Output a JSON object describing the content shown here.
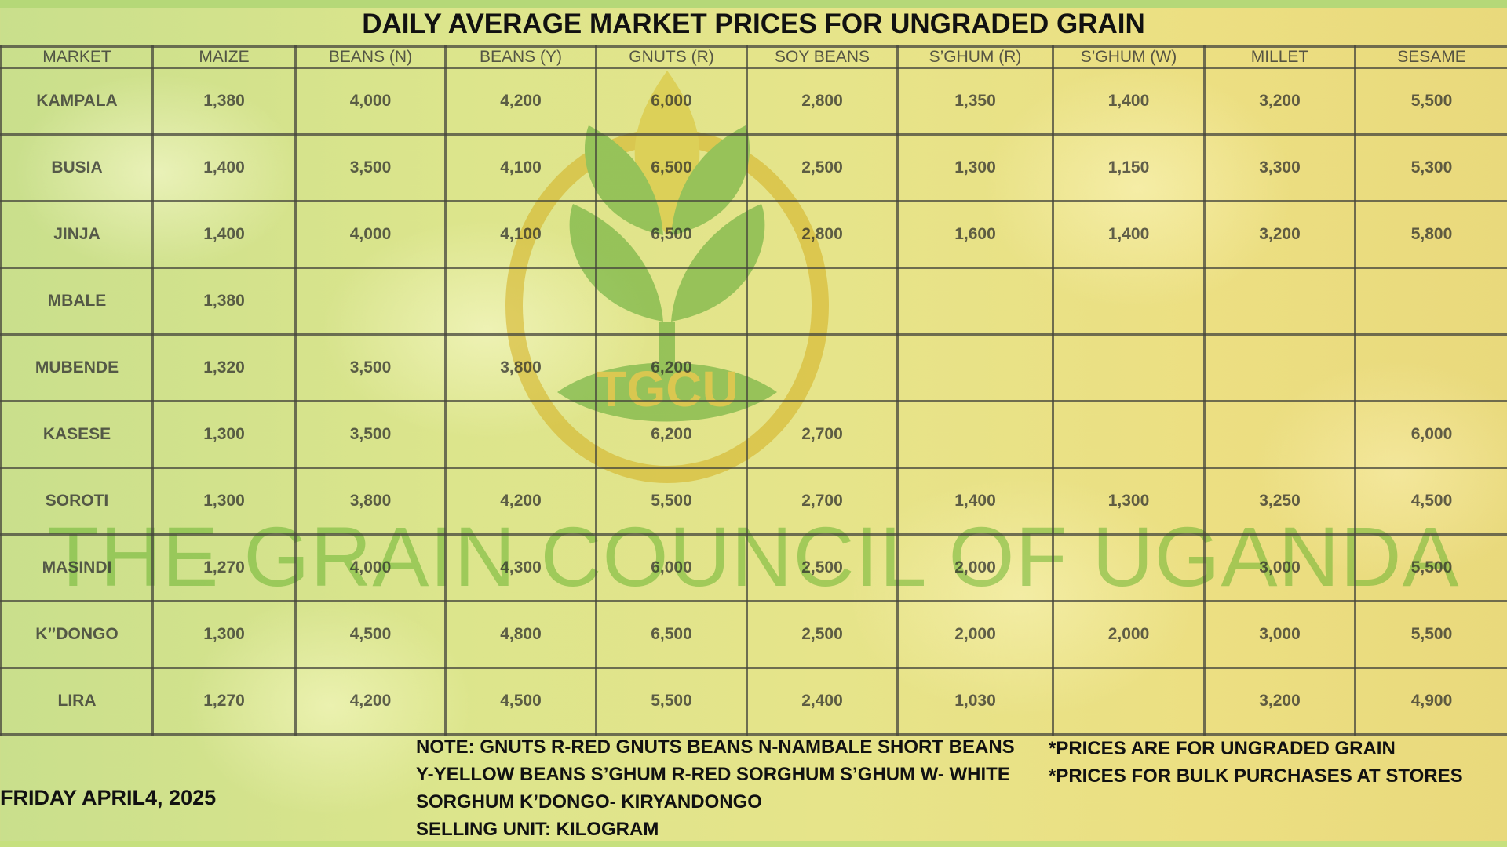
{
  "title": "DAILY AVERAGE MARKET PRICES FOR UNGRADED GRAIN",
  "logo": {
    "icon": "wheat-logo-icon",
    "text": "TGCU"
  },
  "watermark": "THE GRAIN COUNCIL OF UGANDA",
  "table": {
    "headers": [
      "MARKET",
      "MAIZE",
      "BEANS (N)",
      "BEANS (Y)",
      "GNUTS (R)",
      "SOY BEANS",
      "S’GHUM (R)",
      "S’GHUM (W)",
      "MILLET",
      "SESAME"
    ],
    "rows": [
      [
        "KAMPALA",
        "1,380",
        "4,000",
        "4,200",
        "6,000",
        "2,800",
        "1,350",
        "1,400",
        "3,200",
        "5,500"
      ],
      [
        "BUSIA",
        "1,400",
        "3,500",
        "4,100",
        "6,500",
        "2,500",
        "1,300",
        "1,150",
        "3,300",
        "5,300"
      ],
      [
        "JINJA",
        "1,400",
        "4,000",
        "4,100",
        "6,500",
        "2,800",
        "1,600",
        "1,400",
        "3,200",
        "5,800"
      ],
      [
        "MBALE",
        "1,380",
        "",
        "",
        "",
        "",
        "",
        "",
        "",
        ""
      ],
      [
        "MUBENDE",
        "1,320",
        "3,500",
        "3,800",
        "6,200",
        "",
        "",
        "",
        "",
        ""
      ],
      [
        "KASESE",
        "1,300",
        "3,500",
        "",
        "6,200",
        "2,700",
        "",
        "",
        "",
        "6,000"
      ],
      [
        "SOROTI",
        "1,300",
        "3,800",
        "4,200",
        "5,500",
        "2,700",
        "1,400",
        "1,300",
        "3,250",
        "4,500"
      ],
      [
        "MASINDI",
        "1,270",
        "4,000",
        "4,300",
        "6,000",
        "2,500",
        "2,000",
        "",
        "3,000",
        "5,500"
      ],
      [
        "K’’DONGO",
        "1,300",
        "4,500",
        "4,800",
        "6,500",
        "2,500",
        "2,000",
        "2,000",
        "3,000",
        "5,500"
      ],
      [
        "LIRA",
        "1,270",
        "4,200",
        "4,500",
        "5,500",
        "2,400",
        "1,030",
        "",
        "3,200",
        "4,900"
      ]
    ]
  },
  "footer": {
    "date": "FRIDAY APRIL4, 2025",
    "note_lines": [
      "NOTE: GNUTS R-RED GNUTS  BEANS N-NAMBALE SHORT BEANS",
      "Y-YELLOW BEANS  S’GHUM R-RED SORGHUM  S’GHUM W- WHITE",
      "SORGHUM K’DONGO- KIRYANDONGO",
      "SELLING UNIT: KILOGRAM"
    ],
    "right_lines": [
      "*PRICES ARE FOR UNGRADED GRAIN",
      "*PRICES FOR BULK PURCHASES AT STORES"
    ]
  },
  "colors": {
    "background": "#dce58c",
    "logo_green": "#5aa832",
    "logo_gold": "#d4b020",
    "grid": "#46463c"
  }
}
